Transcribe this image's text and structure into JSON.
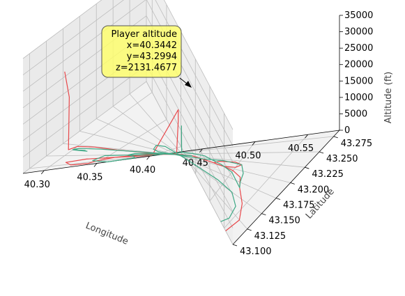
{
  "chart_data": {
    "type": "line3d",
    "title": "",
    "xlabel": "Longitude",
    "ylabel": "Latitude",
    "zlabel": "Altitude (ft)",
    "xlim": [
      40.28,
      40.58
    ],
    "ylim": [
      43.1,
      43.285
    ],
    "zlim": [
      0,
      35000
    ],
    "xticks": [
      "40.30",
      "40.35",
      "40.40",
      "40.45",
      "40.50",
      "40.55"
    ],
    "yticks": [
      "43.100",
      "43.125",
      "43.150",
      "43.175",
      "43.200",
      "43.225",
      "43.250",
      "43.275"
    ],
    "zticks": [
      "0",
      "5000",
      "10000",
      "15000",
      "20000",
      "25000",
      "30000",
      "35000"
    ],
    "grid": true,
    "colors": {
      "red": "#e8474a",
      "green": "#3fa985",
      "pane": "#f2f2f2",
      "annotation": "#ffff66"
    },
    "annotation": {
      "title": "Player altitude",
      "lines": [
        "x=40.3442",
        "y=43.2994",
        "z=2131.4677"
      ]
    },
    "series": [
      {
        "color": "#e8474a",
        "points": [
          [
            40.555,
            43.1,
            0
          ],
          [
            40.56,
            43.125,
            0
          ],
          [
            40.545,
            43.145,
            0
          ],
          [
            40.525,
            43.165,
            0
          ],
          [
            40.515,
            43.185,
            0
          ],
          [
            40.5,
            43.195,
            0
          ],
          [
            40.485,
            43.2,
            0
          ],
          [
            40.47,
            43.205,
            0
          ],
          [
            40.475,
            43.215,
            0
          ],
          [
            40.495,
            43.22,
            0
          ],
          [
            40.505,
            43.215,
            0
          ],
          [
            40.5,
            43.205,
            0
          ],
          [
            40.485,
            43.2,
            0
          ],
          [
            40.47,
            43.205,
            0
          ],
          [
            40.44,
            43.23,
            0
          ],
          [
            40.42,
            43.255,
            0
          ],
          [
            40.425,
            43.275,
            0
          ],
          [
            40.427,
            43.282,
            9500
          ],
          [
            40.427,
            43.282,
            13000
          ],
          [
            40.4,
            43.27,
            0
          ],
          [
            40.36,
            43.262,
            0
          ],
          [
            40.33,
            43.262,
            0
          ],
          [
            40.312,
            43.268,
            0
          ],
          [
            40.322,
            43.278,
            0
          ],
          [
            40.34,
            43.28,
            0
          ],
          [
            40.345,
            43.272,
            0
          ],
          [
            40.36,
            43.262,
            0
          ],
          [
            40.39,
            43.248,
            0
          ],
          [
            40.42,
            43.24,
            0
          ],
          [
            40.43,
            43.238,
            0
          ],
          [
            40.39,
            43.234,
            0
          ],
          [
            40.35,
            43.229,
            0
          ],
          [
            40.32,
            43.226,
            0
          ],
          [
            40.3,
            43.228,
            0
          ],
          [
            40.295,
            43.236,
            0
          ],
          [
            40.296,
            43.236,
            16000
          ],
          [
            40.292,
            43.238,
            24000
          ]
        ]
      },
      {
        "color": "#3fa985",
        "points": [
          [
            40.538,
            43.1,
            0
          ],
          [
            40.545,
            43.115,
            0
          ],
          [
            40.54,
            43.135,
            0
          ],
          [
            40.52,
            43.15,
            0
          ],
          [
            40.49,
            43.155,
            0
          ],
          [
            40.43,
            43.155,
            0
          ],
          [
            40.39,
            43.16,
            0
          ],
          [
            40.38,
            43.175,
            0
          ],
          [
            40.385,
            43.2,
            0
          ],
          [
            40.395,
            43.212,
            0
          ],
          [
            40.425,
            43.212,
            0
          ],
          [
            40.455,
            43.215,
            0
          ],
          [
            40.48,
            43.22,
            0
          ],
          [
            40.505,
            43.215,
            0
          ],
          [
            40.515,
            43.195,
            0
          ],
          [
            40.52,
            43.175,
            0
          ],
          [
            40.525,
            43.165,
            0
          ],
          [
            40.5,
            43.19,
            0
          ],
          [
            40.48,
            43.205,
            0
          ],
          [
            40.465,
            43.218,
            0
          ],
          [
            40.455,
            43.235,
            0
          ],
          [
            40.44,
            43.255,
            0
          ],
          [
            40.43,
            43.275,
            0
          ],
          [
            40.43,
            43.28,
            8000
          ],
          [
            40.43,
            43.275,
            0
          ],
          [
            40.4,
            43.262,
            0
          ],
          [
            40.37,
            43.252,
            0
          ],
          [
            40.345,
            43.252,
            0
          ],
          [
            40.34,
            43.27,
            0
          ],
          [
            40.36,
            43.285,
            0
          ],
          [
            40.385,
            43.28,
            0
          ],
          [
            40.38,
            43.265,
            0
          ],
          [
            40.37,
            43.252,
            0
          ],
          [
            40.375,
            43.242,
            0
          ],
          [
            40.4,
            43.236,
            0
          ],
          [
            40.43,
            43.232,
            0
          ],
          [
            40.44,
            43.23,
            0
          ],
          [
            40.42,
            43.23,
            0
          ],
          [
            40.38,
            43.23,
            0
          ],
          [
            40.33,
            43.23,
            0
          ],
          [
            40.305,
            43.232,
            0
          ],
          [
            40.3,
            43.235,
            0
          ],
          [
            40.318,
            43.238,
            0
          ],
          [
            40.3,
            43.236,
            0
          ],
          [
            40.315,
            43.236,
            0
          ]
        ]
      }
    ]
  }
}
